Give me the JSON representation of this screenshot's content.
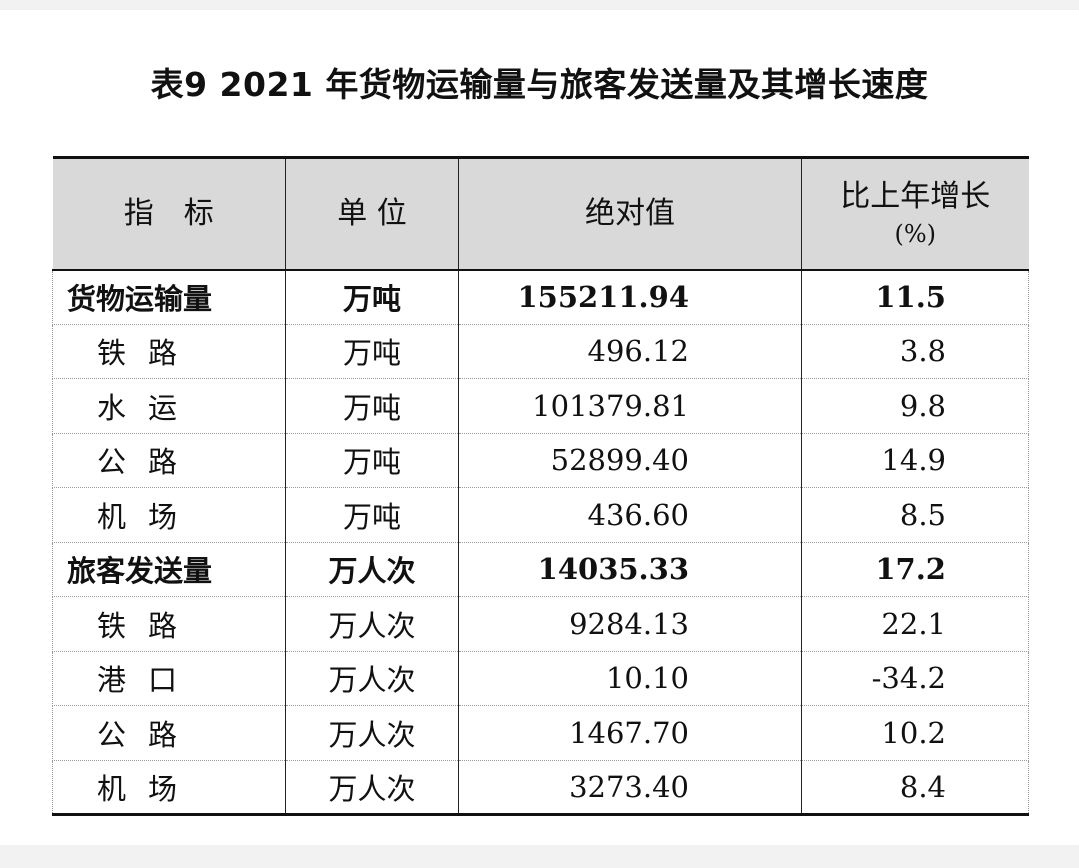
{
  "title": "表9 2021 年货物运输量与旅客发送量及其增长速度",
  "headers": {
    "indicator": "指　标",
    "unit": "单 位",
    "absolute": "绝对值",
    "growth": "比上年增长",
    "growth_unit": "(%)"
  },
  "rows": [
    {
      "name": "货物运输量",
      "unit": "万吨",
      "value": "155211.94",
      "growth": "11.5",
      "bold": true
    },
    {
      "name": "铁路",
      "unit": "万吨",
      "value": "496.12",
      "growth": "3.8",
      "bold": false
    },
    {
      "name": "水运",
      "unit": "万吨",
      "value": "101379.81",
      "growth": "9.8",
      "bold": false
    },
    {
      "name": "公路",
      "unit": "万吨",
      "value": "52899.40",
      "growth": "14.9",
      "bold": false
    },
    {
      "name": "机场",
      "unit": "万吨",
      "value": "436.60",
      "growth": "8.5",
      "bold": false
    },
    {
      "name": "旅客发送量",
      "unit": "万人次",
      "value": "14035.33",
      "growth": "17.2",
      "bold": true
    },
    {
      "name": "铁路",
      "unit": "万人次",
      "value": "9284.13",
      "growth": "22.1",
      "bold": false
    },
    {
      "name": "港口",
      "unit": "万人次",
      "value": "10.10",
      "growth": "-34.2",
      "bold": false
    },
    {
      "name": "公路",
      "unit": "万人次",
      "value": "1467.70",
      "growth": "10.2",
      "bold": false
    },
    {
      "name": "机场",
      "unit": "万人次",
      "value": "3273.40",
      "growth": "8.4",
      "bold": false
    }
  ]
}
